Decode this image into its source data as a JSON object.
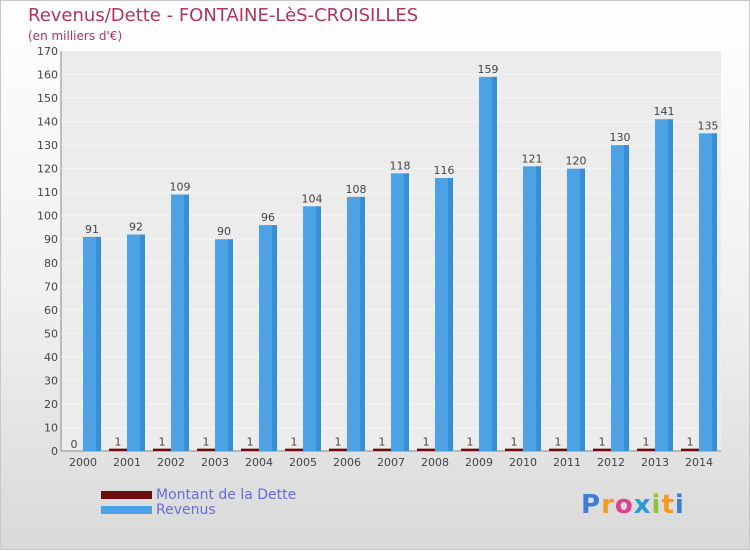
{
  "title": "Revenus/Dette - FONTAINE-LèS-CROISILLES",
  "subtitle": "(en milliers d'€)",
  "logo": {
    "letters": [
      "P",
      "r",
      "o",
      "x",
      "i",
      "t",
      "i"
    ],
    "colors": [
      "#3a7fd5",
      "#f39a1f",
      "#e23f8f",
      "#2e9ad8",
      "#8cc43c",
      "#f39a1f",
      "#3a7fd5"
    ]
  },
  "chart_data": {
    "type": "bar",
    "categories": [
      "2000",
      "2001",
      "2002",
      "2003",
      "2004",
      "2005",
      "2006",
      "2007",
      "2008",
      "2009",
      "2010",
      "2011",
      "2012",
      "2013",
      "2014"
    ],
    "series": [
      {
        "name": "Montant de la Dette",
        "values": [
          0,
          1,
          1,
          1,
          1,
          1,
          1,
          1,
          1,
          1,
          1,
          1,
          1,
          1,
          1
        ],
        "color": "#6b0d0d"
      },
      {
        "name": "Revenus",
        "values": [
          91,
          92,
          109,
          90,
          96,
          104,
          108,
          118,
          116,
          159,
          121,
          120,
          130,
          141,
          135
        ],
        "color": "#4da2e6"
      }
    ],
    "ylim": [
      0,
      170
    ],
    "yticks": [
      0,
      10,
      20,
      30,
      40,
      50,
      60,
      70,
      80,
      90,
      100,
      110,
      120,
      130,
      140,
      150,
      160,
      170
    ],
    "grid": true,
    "legend": "bottom-left"
  }
}
